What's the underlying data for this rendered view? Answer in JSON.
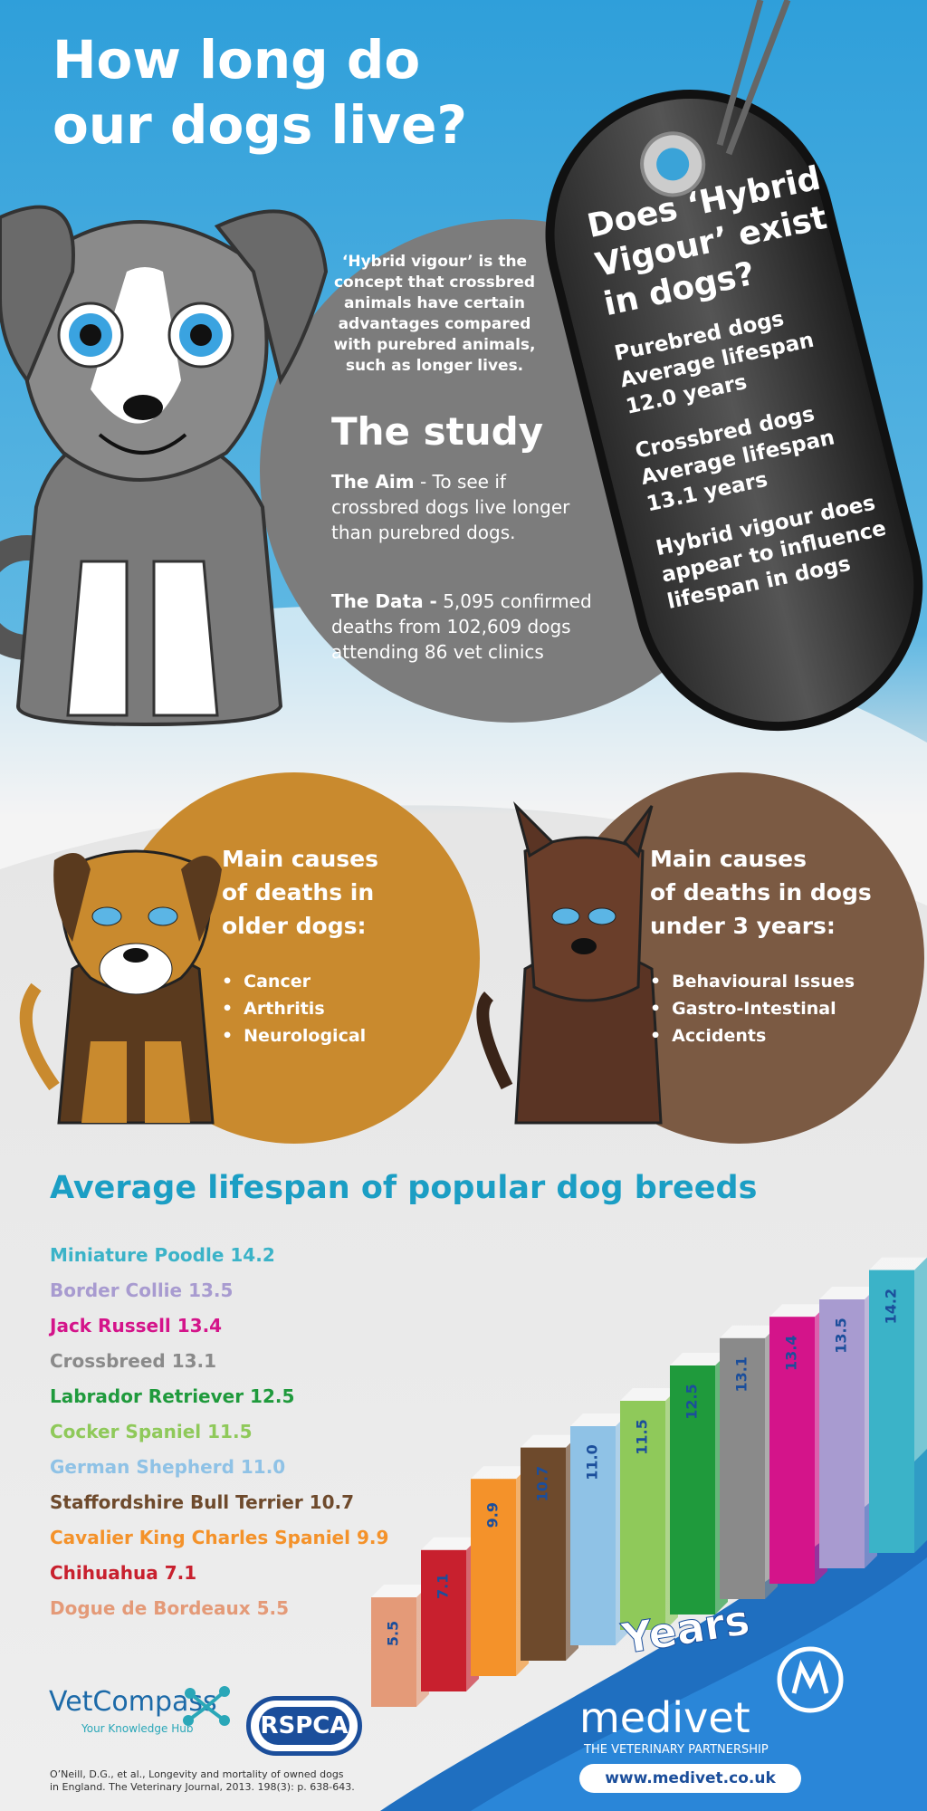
{
  "header": {
    "title_lines": [
      "How long do",
      "our dogs live?"
    ]
  },
  "intro": {
    "lines": [
      "‘Hybrid vigour’ is the",
      "concept that crossbred",
      "animals have certain",
      "advantages compared",
      "with purebred animals,",
      "such as longer lives."
    ]
  },
  "study": {
    "heading": "The study",
    "aim_label": "The Aim",
    "aim_text": "- To see if crossbred dogs live longer than purebred dogs.",
    "data_label": "The Data -",
    "data_text": "5,095 confirmed deaths from 102,609 dogs attending 86 vet clinics"
  },
  "tag": {
    "heading_lines": [
      "Does ‘Hybrid",
      "Vigour’ exist",
      "in dogs?"
    ],
    "purebred_lines": [
      "Purebred dogs",
      "Average lifespan",
      "12.0 years"
    ],
    "crossbred_lines": [
      "Crossbred dogs",
      "Average lifespan",
      "13.1 years"
    ],
    "conclusion_lines": [
      "Hybrid vigour does",
      "appear to influence",
      "lifespan in dogs"
    ]
  },
  "older": {
    "heading_lines": [
      "Main causes",
      "of deaths in",
      "older dogs:"
    ],
    "items": [
      "Cancer",
      "Arthritis",
      "Neurological"
    ]
  },
  "young": {
    "heading_lines": [
      "Main causes",
      "of deaths in dogs",
      "under 3 years:"
    ],
    "items": [
      "Behavioural Issues",
      "Gastro-Intestinal",
      "Accidents"
    ]
  },
  "chart_data": {
    "type": "bar",
    "title": "Average lifespan of popular dog breeds",
    "categories": [
      "Miniature Poodle",
      "Border Collie",
      "Jack Russell",
      "Crossbreed",
      "Labrador Retriever",
      "Cocker Spaniel",
      "German Shepherd",
      "Staffordshire Bull Terrier",
      "Cavalier King Charles Spaniel",
      "Chihuahua",
      "Dogue de Bordeaux"
    ],
    "values": [
      14.2,
      13.5,
      13.4,
      13.1,
      12.5,
      11.5,
      11.0,
      10.7,
      9.9,
      7.1,
      5.5
    ],
    "value_labels": [
      "14.2",
      "13.5",
      "13.4",
      "13.1",
      "12.5",
      "11.5",
      "11.0",
      "10.7",
      "9.9",
      "7.1",
      "5.5"
    ],
    "colors": [
      "#3bb3c8",
      "#a89bd0",
      "#d4148a",
      "#8a8a8a",
      "#1f9a3c",
      "#8fc95a",
      "#8fc2e6",
      "#6e4a2c",
      "#f4922a",
      "#c8202e",
      "#e49a78"
    ],
    "axis_label": "Years"
  },
  "footer": {
    "vetcompass": "VetCompass",
    "vetcompass_tagline": "Your Knowledge Hub",
    "rspca": "RSPCA",
    "medivet": "medivet",
    "medivet_tagline": "THE VETERINARY PARTNERSHIP",
    "url": "www.medivet.co.uk",
    "citation_lines": [
      "O’Neill, D.G., et al., Longevity and mortality of owned dogs",
      "in England. The Veterinary Journal, 2013. 198(3): p. 638-643."
    ]
  }
}
